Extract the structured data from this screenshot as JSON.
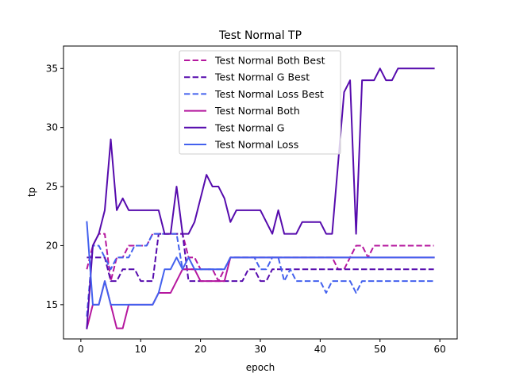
{
  "chart_data": {
    "type": "line",
    "title": "Test Normal TP",
    "xlabel": "epoch",
    "ylabel": "tp",
    "xlim": [
      -2.9,
      62.9
    ],
    "ylim": [
      12.1,
      36.9
    ],
    "xticks": [
      0,
      10,
      20,
      30,
      40,
      50,
      60
    ],
    "yticks": [
      15,
      20,
      25,
      30,
      35
    ],
    "grid": false,
    "legend_position": "top-center",
    "x": [
      1,
      2,
      3,
      4,
      5,
      6,
      7,
      8,
      9,
      10,
      11,
      12,
      13,
      14,
      15,
      16,
      17,
      18,
      19,
      20,
      21,
      22,
      23,
      24,
      25,
      26,
      27,
      28,
      29,
      30,
      31,
      32,
      33,
      34,
      35,
      36,
      37,
      38,
      39,
      40,
      41,
      42,
      43,
      44,
      45,
      46,
      47,
      48,
      49,
      50,
      51,
      52,
      53,
      54,
      55,
      56,
      57,
      58,
      59
    ],
    "series": [
      {
        "name": "Test Normal Both Best",
        "color": "#b5179e",
        "dash": true,
        "values": [
          18,
          20,
          21,
          21,
          17,
          19,
          19,
          20,
          20,
          20,
          20,
          21,
          21,
          21,
          21,
          21,
          21,
          19,
          19,
          18,
          18,
          18,
          17,
          18,
          19,
          19,
          19,
          19,
          19,
          19,
          19,
          19,
          19,
          19,
          19,
          19,
          19,
          19,
          19,
          19,
          19,
          19,
          18,
          18,
          19,
          20,
          20,
          19,
          20,
          20,
          20,
          20,
          20,
          20,
          20,
          20,
          20,
          20,
          20
        ]
      },
      {
        "name": "Test Normal G Best",
        "color": "#560bad",
        "dash": true,
        "values": [
          19,
          19,
          19,
          19,
          17,
          17,
          18,
          18,
          18,
          17,
          17,
          17,
          21,
          21,
          21,
          21,
          21,
          17,
          17,
          17,
          17,
          17,
          17,
          17,
          17,
          17,
          17,
          18,
          18,
          17,
          17,
          18,
          18,
          18,
          18,
          18,
          18,
          18,
          18,
          18,
          18,
          18,
          18,
          18,
          18,
          18,
          18,
          18,
          18,
          18,
          18,
          18,
          18,
          18,
          18,
          18,
          18,
          18,
          18
        ]
      },
      {
        "name": "Test Normal Loss Best",
        "color": "#4361ee",
        "dash": true,
        "values": [
          14,
          20,
          20,
          19,
          18,
          19,
          19,
          19,
          20,
          20,
          20,
          21,
          21,
          21,
          21,
          21,
          18,
          18,
          18,
          18,
          18,
          18,
          18,
          18,
          19,
          19,
          19,
          19,
          19,
          18,
          18,
          19,
          19,
          17,
          18,
          17,
          17,
          17,
          17,
          17,
          16,
          17,
          17,
          17,
          17,
          16,
          17,
          17,
          17,
          17,
          17,
          17,
          17,
          17,
          17,
          17,
          17,
          17,
          17
        ]
      },
      {
        "name": "Test Normal Both",
        "color": "#b5179e",
        "dash": false,
        "values": [
          13,
          15,
          15,
          17,
          15,
          13,
          13,
          15,
          15,
          15,
          15,
          15,
          16,
          16,
          16,
          17,
          18,
          18,
          18,
          17,
          17,
          17,
          17,
          17,
          19,
          19,
          19,
          19,
          19,
          19,
          19,
          19,
          19,
          19,
          19,
          19,
          19,
          19,
          19,
          19,
          19,
          19,
          19,
          19,
          19,
          19,
          19,
          19,
          19,
          19,
          19,
          19,
          19,
          19,
          19,
          19,
          19,
          19,
          19
        ]
      },
      {
        "name": "Test Normal G",
        "color": "#560bad",
        "dash": false,
        "values": [
          13,
          20,
          21,
          23,
          29,
          23,
          24,
          23,
          23,
          23,
          23,
          23,
          23,
          21,
          21,
          25,
          21,
          21,
          22,
          24,
          26,
          25,
          25,
          24,
          22,
          23,
          23,
          23,
          23,
          23,
          22,
          21,
          23,
          21,
          21,
          21,
          22,
          22,
          22,
          22,
          21,
          21,
          27,
          33,
          34,
          21,
          34,
          34,
          34,
          35,
          34,
          34,
          35,
          35,
          35,
          35,
          35,
          35,
          35
        ]
      },
      {
        "name": "Test Normal Loss",
        "color": "#4361ee",
        "dash": false,
        "values": [
          22,
          15,
          15,
          17,
          15,
          15,
          15,
          15,
          15,
          15,
          15,
          15,
          16,
          18,
          18,
          19,
          18,
          19,
          18,
          18,
          18,
          18,
          18,
          18,
          19,
          19,
          19,
          19,
          19,
          19,
          19,
          19,
          19,
          19,
          19,
          19,
          19,
          19,
          19,
          19,
          19,
          19,
          19,
          19,
          19,
          19,
          19,
          19,
          19,
          19,
          19,
          19,
          19,
          19,
          19,
          19,
          19,
          19,
          19
        ]
      }
    ]
  }
}
